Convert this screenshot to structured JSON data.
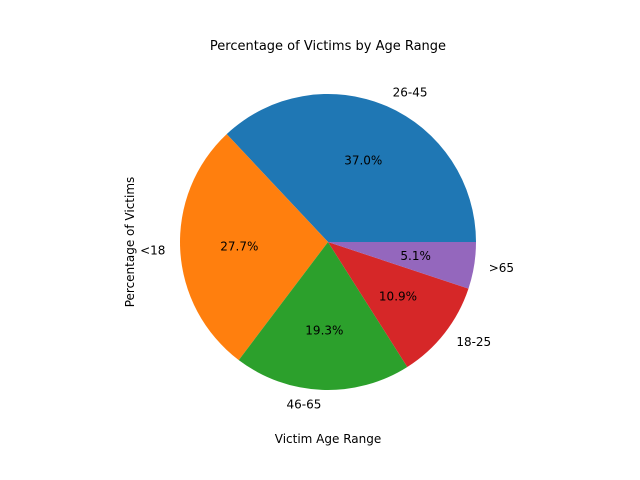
{
  "chart_data": {
    "type": "pie",
    "title": "Percentage of Victims by Age Range",
    "xlabel": "Victim Age Range",
    "ylabel": "Percentage of Victims",
    "categories": [
      "26-45",
      "<18",
      "46-65",
      "18-25",
      ">65"
    ],
    "values": [
      37.0,
      27.7,
      19.3,
      10.9,
      5.1
    ],
    "labels_pct": [
      "37.0%",
      "27.7%",
      "19.3%",
      "10.9%",
      "5.1%"
    ],
    "colors": [
      "#1f77b4",
      "#ff7f0e",
      "#2ca02c",
      "#d62728",
      "#9467bd"
    ],
    "start_angle_deg": 0,
    "direction": "counterclockwise",
    "legend": "none"
  }
}
